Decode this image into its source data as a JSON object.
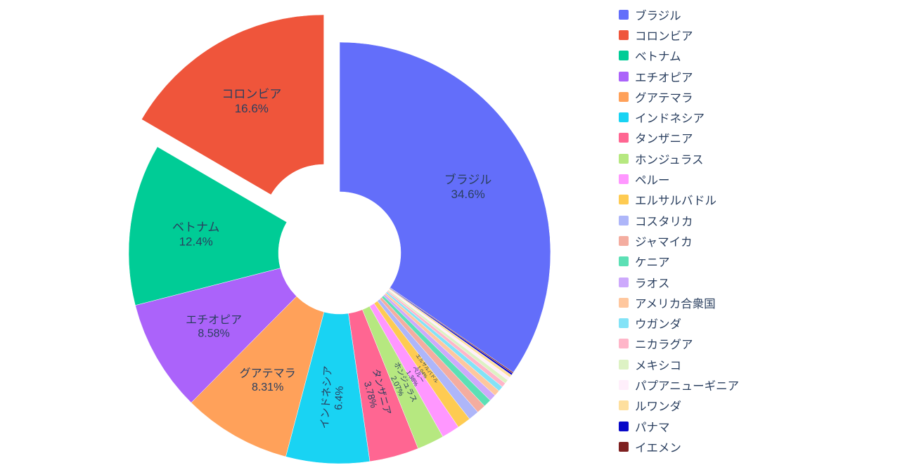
{
  "accent_text_color": "#2a3f5f",
  "background_color": "#ffffff",
  "chart_data": {
    "type": "pie",
    "title": "",
    "hole": 0.29,
    "start_angle": "top",
    "direction": "largest slice clockwise from top, remainder counterclockwise (plotly default)",
    "legend_position": "right",
    "pulled_slice": "コロンビア",
    "pull_amount": 0.15,
    "label_text_color": "#2a3f5f",
    "labels": [
      "ブラジル",
      "コロンビア",
      "ベトナム",
      "エチオピア",
      "グアテマラ",
      "インドネシア",
      "タンザニア",
      "ホンジュラス",
      "ペルー",
      "エルサルバドル",
      "コスタリカ",
      "ジャマイカ",
      "ケニア",
      "ラオス",
      "アメリカ合衆国",
      "ウガンダ",
      "ニカラグア",
      "メキシコ",
      "パプアニューギニア",
      "ルワンダ",
      "パナマ",
      "イエメン"
    ],
    "values": [
      34.6,
      16.6,
      12.4,
      8.58,
      8.31,
      6.4,
      3.78,
      2.07,
      1.38,
      1.04,
      0.81,
      0.69,
      0.6,
      0.52,
      0.45,
      0.4,
      0.35,
      0.3,
      0.26,
      0.22,
      0.15,
      0.09
    ],
    "percent_labels": [
      "34.6%",
      "16.6%",
      "12.4%",
      "8.58%",
      "8.31%",
      "6.4%",
      "3.78%",
      "2.07%",
      "1.38%",
      "1.04%",
      "0.81%",
      "0.69%",
      "0.6%",
      "0.52%",
      "0.45%",
      "0.4%",
      "0.35%",
      "0.3%",
      "0.26%",
      "0.22%",
      "0.15%",
      "0.09%"
    ],
    "colors": [
      "#636EFA",
      "#EF553B",
      "#00CC96",
      "#AB63FA",
      "#FFA15A",
      "#19D3F3",
      "#FF6692",
      "#B6E880",
      "#FF97FF",
      "#FECB52",
      "#AEB6F9",
      "#F4ADA0",
      "#5CE0B5",
      "#CDA9FC",
      "#FFC79E",
      "#83E3F7",
      "#FFB6C9",
      "#DDF2C4",
      "#FFEFFB",
      "#FEDF9E",
      "#0909C8",
      "#7E2020"
    ]
  }
}
